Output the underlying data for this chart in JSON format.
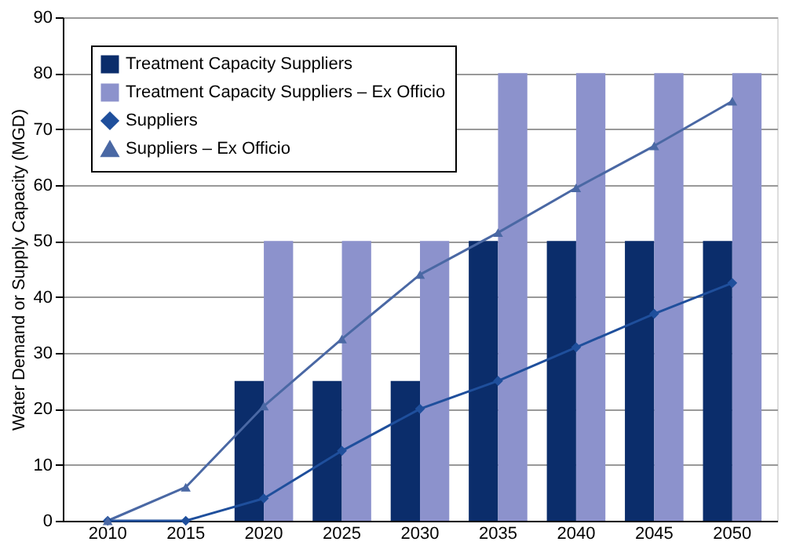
{
  "chart_data": {
    "type": "bar",
    "ylabel": "Water Demand or Supply Capacity (MGD)",
    "categories": [
      "2010",
      "2015",
      "2020",
      "2025",
      "2030",
      "2035",
      "2040",
      "2045",
      "2050"
    ],
    "series": [
      {
        "name": "Treatment Capacity Suppliers",
        "color": "#0b2d6b",
        "values": [
          0,
          0,
          25,
          25,
          25,
          50,
          50,
          50,
          50
        ]
      },
      {
        "name": "Treatment Capacity Suppliers – Ex Officio",
        "color": "#8c92cc",
        "values": [
          0,
          0,
          50,
          50,
          50,
          80,
          80,
          80,
          80
        ]
      },
      {
        "name": "Suppliers",
        "type": "line",
        "marker": "diamond",
        "color": "#1f4f9c",
        "values": [
          0,
          0,
          4,
          12.5,
          20,
          25,
          31,
          37,
          42.5
        ]
      },
      {
        "name": "Suppliers – Ex Officio",
        "type": "line",
        "marker": "triangle",
        "color": "#4a68a4",
        "values": [
          0,
          6,
          20.5,
          32.5,
          44,
          51.5,
          59.5,
          67,
          75
        ]
      }
    ],
    "ylim": [
      0,
      90
    ],
    "yticks": [
      0,
      10,
      20,
      30,
      40,
      50,
      60,
      70,
      80,
      90
    ],
    "grid": "y",
    "legend": "top left"
  }
}
